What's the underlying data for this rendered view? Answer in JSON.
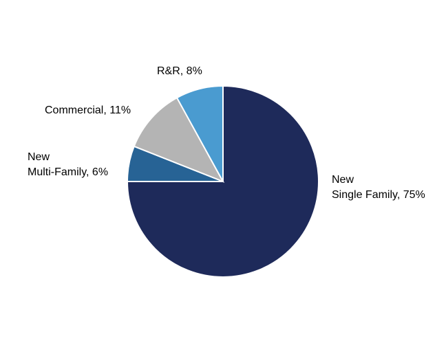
{
  "chart_data": {
    "type": "pie",
    "start_angle_deg": 0,
    "direction": "clockwise",
    "slices": [
      {
        "label_lines": [
          "New",
          "Single Family, 75%"
        ],
        "value": 75,
        "color": "#1e2a5a"
      },
      {
        "label_lines": [
          "New",
          "Multi-Family, 6%"
        ],
        "value": 6,
        "color": "#276395"
      },
      {
        "label_lines": [
          "Commercial, 11%"
        ],
        "value": 11,
        "color": "#b4b4b4"
      },
      {
        "label_lines": [
          "R&R, 8%"
        ],
        "value": 8,
        "color": "#4a9bd0"
      }
    ]
  }
}
